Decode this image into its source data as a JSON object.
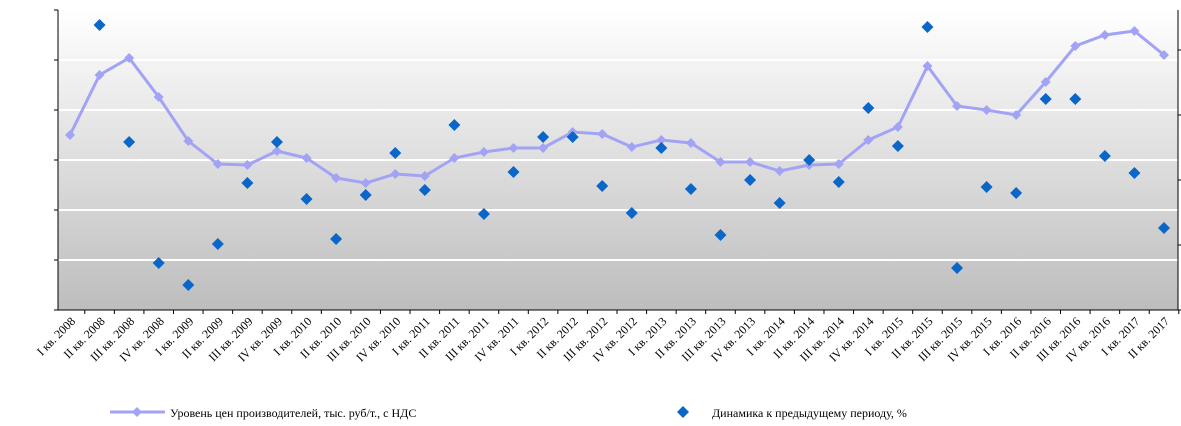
{
  "chart_data": {
    "type": "line",
    "categories": [
      "I кв. 2008",
      "II кв. 2008",
      "III кв. 2008",
      "IV кв. 2008",
      "I кв. 2009",
      "II кв. 2009",
      "III кв. 2009",
      "IV кв. 2009",
      "I кв. 2010",
      "II кв. 2010",
      "III кв. 2010",
      "IV кв. 2010",
      "I кв. 2011",
      "II кв. 2011",
      "III кв. 2011",
      "IV кв. 2011",
      "I кв. 2012",
      "II кв. 2012",
      "III кв. 2012",
      "IV кв. 2012",
      "I кв. 2013",
      "II кв. 2013",
      "III кв. 2013",
      "IV кв. 2013",
      "I кв. 2014",
      "II кв. 2014",
      "III кв. 2014",
      "IV кв. 2014",
      "I кв. 2015",
      "II кв. 2015",
      "III кв. 2015",
      "IV кв. 2015",
      "I кв. 2016",
      "II кв. 2016",
      "III кв. 2016",
      "IV кв. 2016",
      "I кв. 2017",
      "II кв. 2017"
    ],
    "series": [
      {
        "name": "Уровень цен производителей, тыс. руб/т.,  с НДС",
        "color": "#a3a3f5",
        "type": "line",
        "values": [
          3.5,
          4.7,
          5.04,
          4.26,
          3.38,
          2.92,
          2.9,
          3.18,
          3.04,
          2.64,
          2.54,
          2.72,
          2.68,
          3.04,
          3.16,
          3.24,
          3.24,
          3.56,
          3.52,
          3.26,
          3.4,
          3.34,
          2.96,
          2.96,
          2.78,
          2.9,
          2.92,
          3.4,
          3.66,
          4.88,
          4.08,
          4.0,
          3.9,
          4.56,
          5.28,
          5.5,
          5.58,
          5.1
        ]
      },
      {
        "name": "Динамика к предыдущему периоду, %",
        "color": "#0a66c8",
        "type": "scatter",
        "axis": "y2",
        "values": [
          null,
          5.7,
          3.36,
          0.94,
          0.5,
          1.32,
          2.54,
          3.36,
          2.22,
          1.42,
          2.3,
          3.14,
          2.4,
          3.7,
          1.92,
          2.76,
          3.46,
          3.46,
          2.48,
          1.94,
          3.24,
          2.42,
          1.5,
          2.6,
          2.14,
          3.0,
          2.56,
          4.04,
          3.28,
          5.66,
          0.84,
          2.46,
          2.34,
          4.22,
          4.22,
          3.08,
          2.74,
          1.64
        ]
      }
    ],
    "ylim": [
      0,
      6
    ],
    "yticks": [
      0,
      1,
      2,
      3,
      4,
      5,
      6
    ],
    "y2lim": [
      0,
      6
    ],
    "y2ticks": [
      0,
      1.3,
      2.6,
      3.9,
      5.2
    ],
    "grid": true,
    "legend": "bottom"
  }
}
